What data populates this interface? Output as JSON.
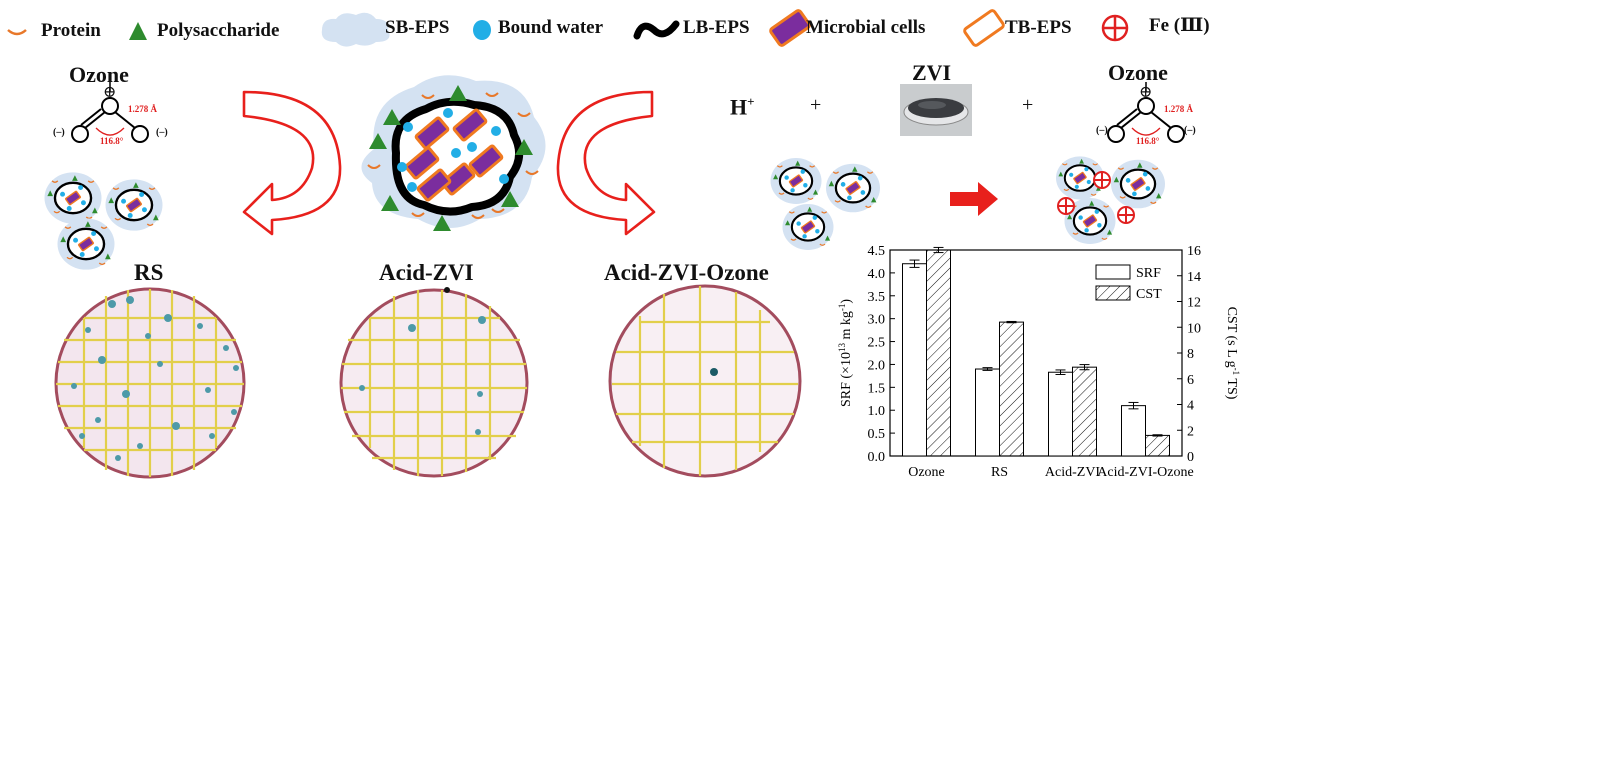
{
  "legend": {
    "protein": "Protein",
    "polysaccharide": "Polysaccharide",
    "sb_eps": "SB-EPS",
    "bound_water": "Bound water",
    "lb_eps": "LB-EPS",
    "microbial_cells": "Microbial cells",
    "tb_eps": "TB-EPS",
    "fe3": "Fe (Ⅲ)"
  },
  "colors": {
    "protein": "#e8782a",
    "polysaccharide": "#2e8b2e",
    "sb_eps": "#d4e2f2",
    "bound_water": "#22aee6",
    "lb_eps": "#000000",
    "microbial_cells": "#7b2d9e",
    "tb_eps": "#f07a20",
    "fe3": "#e02020",
    "arrow": "#e8201c"
  },
  "molecules": {
    "left_title": "Ozone",
    "right_title": "Ozone",
    "bond_length": "1.278 Å",
    "bond_angle": "116.8°",
    "plus_charge": "⊕",
    "minus_charge": "(–)"
  },
  "reagents": {
    "proton": "H",
    "proton_sup": "+",
    "plus1": "+",
    "zvi": "ZVI",
    "plus2": "+"
  },
  "stages": {
    "rs": "RS",
    "acid_zvi": "Acid-ZVI",
    "acid_zvi_ozone": "Acid-ZVI-Ozone"
  },
  "chart_data": {
    "type": "bar",
    "categories": [
      "Ozone",
      "RS",
      "Acid-ZVI",
      "Acid-ZVI-Ozone"
    ],
    "series": [
      {
        "name": "SRF",
        "axis": "left",
        "pattern": "open",
        "values": [
          4.2,
          1.9,
          1.83,
          1.1
        ],
        "errors": [
          0.08,
          0.03,
          0.05,
          0.07
        ]
      },
      {
        "name": "CST",
        "axis": "right",
        "pattern": "hatched",
        "values": [
          16.0,
          10.4,
          6.9,
          1.6
        ],
        "errors": [
          0.2,
          0.05,
          0.2,
          0.05
        ]
      }
    ],
    "ylabel": "SRF (×10^13 m kg^-1)",
    "ylabel_parts": {
      "a": "SRF (×10",
      "sup1": "13",
      "b": " m kg",
      "sup2": "-1",
      "c": ")"
    },
    "y2label": "CST (s L g^-1 TS)",
    "y2label_parts": {
      "a": "CST (s L g",
      "sup": "-1",
      "b": " TS)"
    },
    "ylim": [
      0,
      4.5
    ],
    "y2lim": [
      0,
      16
    ],
    "yticks": [
      "0.0",
      "0.5",
      "1.0",
      "1.5",
      "2.0",
      "2.5",
      "3.0",
      "3.5",
      "4.0",
      "4.5"
    ],
    "y2ticks": [
      "0",
      "2",
      "4",
      "6",
      "8",
      "10",
      "12",
      "14",
      "16"
    ],
    "legend_position": "top-right",
    "grid": false
  }
}
